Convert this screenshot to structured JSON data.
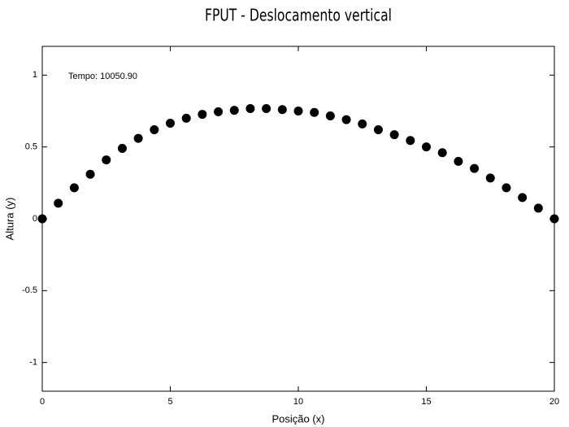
{
  "chart_data": {
    "type": "scatter",
    "title": "FPUT - Deslocamento vertical",
    "annotation": "Tempo: 10050.90",
    "x_label": "Posição (x)",
    "y_label": "Altura (y)",
    "x": [
      0,
      0.625,
      1.25,
      1.875,
      2.5,
      3.125,
      3.75,
      4.375,
      5,
      5.625,
      6.25,
      6.875,
      7.5,
      8.125,
      8.75,
      9.375,
      10,
      10.625,
      11.25,
      11.875,
      12.5,
      13.125,
      13.75,
      14.375,
      15,
      15.625,
      16.25,
      16.875,
      17.5,
      18.125,
      18.75,
      19.375,
      20
    ],
    "values": [
      0,
      0.108,
      0.216,
      0.31,
      0.41,
      0.49,
      0.56,
      0.62,
      0.665,
      0.7,
      0.727,
      0.745,
      0.755,
      0.767,
      0.767,
      0.76,
      0.75,
      0.74,
      0.716,
      0.69,
      0.66,
      0.62,
      0.585,
      0.545,
      0.5,
      0.46,
      0.4,
      0.35,
      0.284,
      0.216,
      0.148,
      0.074,
      0
    ],
    "color": "#000000",
    "xlim": [
      0,
      20
    ],
    "xticks": [
      0,
      5,
      10,
      15,
      20
    ],
    "ylim": [
      -1.2,
      1.2
    ],
    "yticks": [
      -1,
      -0.5,
      0,
      0.5,
      1
    ],
    "grid": false
  }
}
